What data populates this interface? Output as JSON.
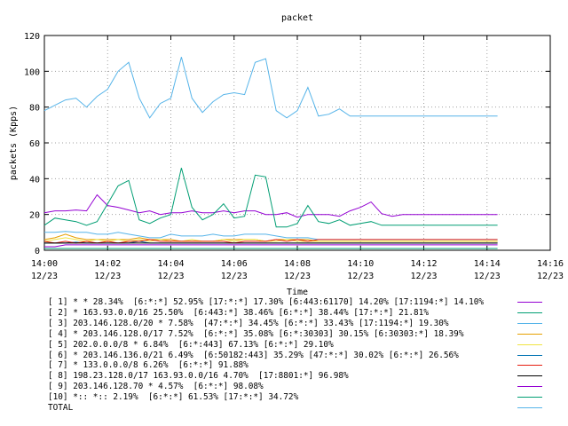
{
  "chart_data": {
    "type": "line",
    "title": "packet",
    "xlabel": "Time",
    "ylabel": "packets (Kpps)",
    "ylim": [
      0,
      120
    ],
    "yticks": [
      "0",
      "20",
      "40",
      "60",
      "80",
      "100",
      "120"
    ],
    "xticks": [
      {
        "time": "14:00",
        "date": "12/23"
      },
      {
        "time": "14:02",
        "date": "12/23"
      },
      {
        "time": "14:04",
        "date": "12/23"
      },
      {
        "time": "14:06",
        "date": "12/23"
      },
      {
        "time": "14:08",
        "date": "12/23"
      },
      {
        "time": "14:10",
        "date": "12/23"
      },
      {
        "time": "14:12",
        "date": "12/23"
      },
      {
        "time": "14:14",
        "date": "12/23"
      },
      {
        "time": "14:16",
        "date": "12/23"
      }
    ],
    "x_minutes": [
      0,
      0.3333,
      0.6667,
      1,
      1.3333,
      1.6667,
      2,
      2.3333,
      2.6667,
      3,
      3.3333,
      3.6667,
      4,
      4.3333,
      4.6667,
      5,
      5.3333,
      5.6667,
      6,
      6.3333,
      6.6667,
      7,
      7.3333,
      7.6667,
      8,
      8.3333,
      8.6667,
      9,
      9.3333,
      9.6667,
      10,
      10.3333,
      10.6667,
      11,
      11.3333,
      11.6667,
      12,
      12.3333,
      12.6667,
      13,
      13.3333,
      13.6667,
      14,
      14.3333
    ],
    "grid": true,
    "legend_position": "below",
    "series": [
      {
        "name": "[ 1] * * 28.34%  [6:*:*] 52.95% [17:*:*] 17.30% [6:443:61170] 14.20% [17:1194:*] 14.10%",
        "color": "#9400d3",
        "values": [
          21,
          22,
          22,
          22.5,
          22,
          31,
          25,
          24,
          22.5,
          21,
          22,
          20,
          21,
          21,
          22,
          21,
          21,
          22,
          21,
          22,
          22,
          20,
          20,
          21,
          18.5,
          20,
          20,
          20,
          19,
          22,
          24,
          27,
          20.5,
          19,
          20,
          20,
          20,
          20,
          20,
          20,
          20,
          20,
          20,
          20
        ]
      },
      {
        "name": "[ 2] * 163.93.0.0/16 25.50%  [6:443:*] 38.46% [6:*:*] 38.44% [17:*:*] 21.81%",
        "color": "#009e73",
        "values": [
          14,
          18,
          17,
          16,
          14,
          16,
          26,
          36,
          39,
          17,
          15,
          18,
          20,
          46,
          24,
          17,
          20,
          26,
          18,
          19,
          42,
          41,
          13,
          13,
          15,
          25,
          16,
          15,
          17,
          14,
          15,
          16,
          14,
          14,
          14,
          14,
          14,
          14,
          14,
          14,
          14,
          14,
          14,
          14
        ]
      },
      {
        "name": "[ 3] 203.146.128.0/20 * 7.58%  [47:*:*] 34.45% [6:*:*] 33.43% [17:1194:*] 19.30%",
        "color": "#56b4e9",
        "values": [
          10,
          10,
          10.5,
          10,
          10,
          9,
          9,
          10,
          9,
          8,
          7,
          7,
          9,
          8,
          8,
          8,
          9,
          8,
          8,
          9,
          9,
          9,
          8,
          7,
          7,
          7,
          6,
          6,
          6,
          6,
          6,
          6,
          6,
          6,
          6,
          6,
          6,
          6,
          6,
          6,
          6,
          6,
          6,
          6
        ]
      },
      {
        "name": "[ 4] * 203.146.128.0/17 7.52%  [6:*:*] 35.08% [6:*:30303] 30.15% [6:30303:*] 18.39%",
        "color": "#e69f00",
        "values": [
          6,
          7,
          9,
          7,
          6,
          6,
          6,
          6,
          6,
          7,
          6,
          6,
          6,
          5,
          5,
          5,
          5,
          6,
          6,
          6,
          6,
          5,
          6,
          6,
          6,
          6,
          5,
          5,
          5,
          5,
          5,
          5,
          5,
          5,
          5,
          5,
          5,
          5,
          5,
          5,
          5,
          5,
          5,
          5
        ]
      },
      {
        "name": "[ 5] 202.0.0.0/8 * 6.84%  [6:*:443] 67.13% [6:*:*] 29.10%",
        "color": "#f0e442",
        "values": [
          5,
          6,
          7,
          6,
          5,
          6,
          5,
          6,
          5,
          6,
          5,
          6,
          5,
          5,
          6,
          5,
          5,
          6,
          5,
          6,
          6,
          5,
          5,
          6,
          5,
          5,
          5,
          5,
          5,
          5,
          5,
          5,
          5,
          5,
          5,
          5,
          5,
          5,
          5,
          5,
          5,
          5,
          5,
          5
        ]
      },
      {
        "name": "[ 6] * 203.146.136.0/21 6.49%  [6:50182:443] 35.29% [47:*:*] 30.02% [6:*:*] 26.56%",
        "color": "#0072b2",
        "values": [
          4,
          4,
          4,
          4.5,
          4,
          4,
          4,
          4,
          4,
          5,
          4,
          4,
          4,
          4,
          4,
          4,
          4,
          4,
          4,
          4,
          4,
          4,
          4,
          4,
          4,
          4,
          4,
          4,
          4,
          4,
          4,
          4,
          4,
          4,
          4,
          4,
          4,
          4,
          4,
          4,
          4,
          4,
          4,
          4
        ]
      },
      {
        "name": "[ 7] * 133.0.0.0/8 6.26%  [6:*:*] 91.88%",
        "color": "#e51e10",
        "values": [
          5,
          4,
          5,
          4,
          5,
          4,
          5,
          4,
          5,
          5,
          6,
          5,
          5,
          5,
          5,
          5,
          5,
          5,
          4,
          5,
          5,
          5,
          6,
          5,
          6,
          5,
          6,
          6,
          6,
          6,
          6,
          6,
          6,
          6,
          6,
          6,
          6,
          6,
          6,
          6,
          6,
          6,
          6,
          6
        ]
      },
      {
        "name": "[ 8] 198.23.128.0/17 163.93.0.0/16 4.70%  [17:8801:*] 96.98%",
        "color": "#000000",
        "values": [
          4,
          4,
          4,
          4,
          4,
          4,
          4,
          4,
          4,
          4,
          4,
          4,
          4,
          4,
          4,
          4,
          4,
          4,
          4,
          4,
          4,
          4,
          4,
          4,
          4,
          4,
          4,
          4,
          4,
          4,
          4,
          4,
          4,
          4,
          4,
          4,
          4,
          4,
          4,
          4,
          4,
          4,
          4,
          4
        ]
      },
      {
        "name": "[ 9] 203.146.128.70 * 4.57%  [6:*:*] 98.08%",
        "color": "#9400d3",
        "values": [
          2,
          2,
          3,
          3,
          3,
          3,
          3,
          3,
          3,
          3,
          3,
          3,
          3,
          3,
          3,
          3,
          3,
          3,
          3,
          3,
          3,
          3,
          3,
          3,
          3,
          3,
          3,
          3,
          3,
          3,
          3,
          3,
          3,
          3,
          3,
          3,
          3,
          3,
          3,
          3,
          3,
          3,
          3,
          3
        ]
      },
      {
        "name": "[10] *:: *:: 2.19%  [6:*:*] 61.53% [17:*:*] 34.72%",
        "color": "#009e73",
        "values": [
          1,
          1,
          1,
          1,
          1,
          1,
          1,
          1,
          1,
          1,
          1,
          1,
          1,
          1,
          1,
          1,
          1,
          1,
          1,
          1,
          1,
          1,
          1,
          1,
          1,
          1,
          1,
          1,
          1,
          1,
          1,
          1,
          1,
          1,
          1,
          1,
          1,
          1,
          1,
          1,
          1,
          1,
          1,
          1
        ]
      },
      {
        "name": "TOTAL",
        "color": "#56b4e9",
        "values": [
          78,
          81,
          84,
          85,
          80,
          86,
          90,
          100,
          105,
          85,
          74,
          82,
          85,
          108,
          85,
          77,
          83,
          87,
          88,
          87,
          105,
          107,
          78,
          74,
          78,
          91,
          75,
          76,
          79,
          75,
          75,
          75,
          75,
          75,
          75,
          75,
          75,
          75,
          75,
          75,
          75,
          75,
          75,
          75
        ]
      }
    ]
  }
}
